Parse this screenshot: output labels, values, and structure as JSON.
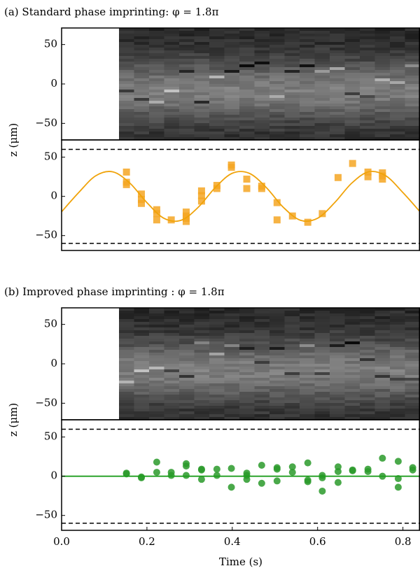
{
  "chart_data": [
    {
      "type": "image",
      "title": "(a) Standard phase imprinting: φ = 1.8π",
      "xlim": [
        0,
        0.84
      ],
      "ylim": [
        -71,
        71
      ],
      "yticks": [
        50,
        0,
        {
          "value": -50,
          "label": "−50"
        }
      ]
    },
    {
      "type": "scatter",
      "y_label": "z (μm)",
      "xlim": [
        0,
        0.84
      ],
      "ylim": [
        -69,
        72
      ],
      "yticks": [
        50,
        0,
        {
          "value": -50,
          "label": "−50"
        }
      ],
      "reference_lines": [
        60,
        -60
      ],
      "series": [
        {
          "color": "#f5a623",
          "marker": "square",
          "x": [
            0.152,
            0.152,
            0.152,
            0.187,
            0.187,
            0.187,
            0.223,
            0.223,
            0.223,
            0.257,
            0.292,
            0.292,
            0.292,
            0.292,
            0.328,
            0.328,
            0.328,
            0.364,
            0.364,
            0.398,
            0.398,
            0.434,
            0.434,
            0.469,
            0.469,
            0.505,
            0.505,
            0.541,
            0.577,
            0.611,
            0.648,
            0.682,
            0.718,
            0.718,
            0.752,
            0.752,
            0.752
          ],
          "values": [
            31,
            18,
            15,
            3,
            -4,
            -9,
            -17,
            -22,
            -30,
            -30,
            -20,
            -25,
            -28,
            -32,
            7,
            1,
            -6,
            14,
            10,
            40,
            37,
            22,
            10,
            13,
            10,
            -8,
            -30,
            -25,
            -33,
            -22,
            24,
            42,
            31,
            25,
            30,
            26,
            22
          ]
        },
        {
          "color": "#f0a30a",
          "marker": "line",
          "x": [
            0,
            0.04,
            0.08,
            0.12,
            0.16,
            0.2,
            0.24,
            0.28,
            0.32,
            0.36,
            0.4,
            0.44,
            0.48,
            0.52,
            0.56,
            0.6,
            0.64,
            0.68,
            0.72,
            0.76,
            0.8,
            0.84
          ],
          "values": [
            -19.6,
            4.8,
            26.3,
            31.3,
            16.9,
            -8.0,
            -28.0,
            -30.5,
            -14.0,
            11.1,
            29.5,
            29.4,
            11.1,
            -14.1,
            -30.5,
            -27.9,
            -8.0,
            16.9,
            31.4,
            26.2,
            4.8,
            -19.6
          ]
        }
      ]
    },
    {
      "type": "image",
      "title": "(b) Improved phase imprinting : φ = 1.8π",
      "xlim": [
        0,
        0.84
      ],
      "ylim": [
        -71,
        71
      ],
      "yticks": [
        50,
        0,
        {
          "value": -50,
          "label": "−50"
        }
      ]
    },
    {
      "type": "scatter",
      "y_label": "z (μm)",
      "x_label": "Time (s)",
      "xlim": [
        0,
        0.84
      ],
      "ylim": [
        -69,
        72
      ],
      "xticks": [
        {
          "value": 0,
          "label": "0.0"
        },
        0.2,
        0.4,
        0.6,
        0.8
      ],
      "yticks": [
        50,
        0,
        {
          "value": -50,
          "label": "−50"
        }
      ],
      "reference_lines": [
        60,
        -60
      ],
      "series": [
        {
          "color": "#2a9a2a",
          "marker": "circle",
          "x": [
            0.152,
            0.152,
            0.187,
            0.187,
            0.223,
            0.223,
            0.257,
            0.257,
            0.292,
            0.292,
            0.292,
            0.328,
            0.328,
            0.328,
            0.364,
            0.364,
            0.398,
            0.398,
            0.434,
            0.434,
            0.434,
            0.469,
            0.469,
            0.505,
            0.505,
            0.505,
            0.541,
            0.541,
            0.577,
            0.577,
            0.577,
            0.611,
            0.611,
            0.611,
            0.648,
            0.648,
            0.648,
            0.682,
            0.682,
            0.718,
            0.718,
            0.752,
            0.752,
            0.789,
            0.789,
            0.789,
            0.823,
            0.823
          ],
          "values": [
            3,
            4,
            -1,
            -2,
            18,
            5,
            5,
            1,
            16,
            13,
            1,
            9,
            8,
            -4,
            9,
            1,
            10,
            -14,
            4,
            1,
            -4,
            14,
            -9,
            11,
            9,
            -6,
            12,
            5,
            17,
            -5,
            -7,
            1,
            -2,
            -19,
            12,
            6,
            -8,
            7,
            8,
            9,
            6,
            23,
            0,
            19,
            -3,
            -14,
            11,
            8
          ]
        },
        {
          "color": "#1f9e1f",
          "marker": "line",
          "x": [
            0,
            0.84
          ],
          "values": [
            0,
            0
          ]
        }
      ]
    }
  ]
}
